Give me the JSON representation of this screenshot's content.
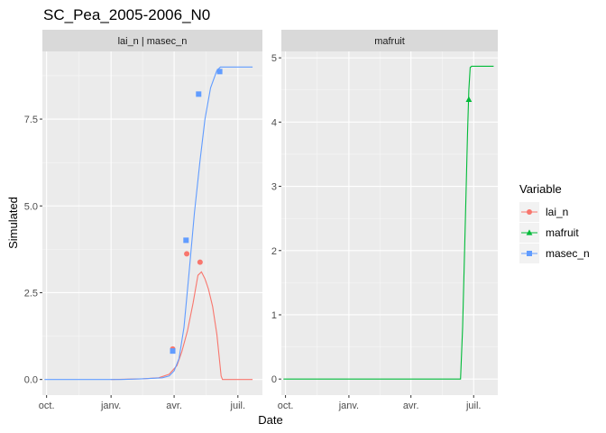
{
  "chart_data": {
    "type": "line",
    "title": "SC_Pea_2005-2006_N0",
    "xlabel": "Date",
    "ylabel": "Simulated",
    "legend": {
      "title": "Variable",
      "placement": "right",
      "entries": [
        {
          "name": "lai_n",
          "color": "#F8766D",
          "shape": "circle"
        },
        {
          "name": "mafruit",
          "color": "#00BA38",
          "shape": "triangle"
        },
        {
          "name": "masec_n",
          "color": "#619CFF",
          "shape": "square"
        }
      ]
    },
    "x_domain": [
      "2005-09-25",
      "2006-08-05"
    ],
    "x_ticks": [
      {
        "date": "2005-10-01",
        "label": "oct."
      },
      {
        "date": "2006-01-01",
        "label": "janv."
      },
      {
        "date": "2006-04-01",
        "label": "avr."
      },
      {
        "date": "2006-07-01",
        "label": "juil."
      }
    ],
    "grid": true,
    "panels": [
      {
        "strip": "lai_n | masec_n",
        "ylim": [
          -0.45,
          9.45
        ],
        "y_ticks": [
          {
            "value": 0,
            "label": "0.0"
          },
          {
            "value": 2.5,
            "label": "2.5"
          },
          {
            "value": 5,
            "label": "5.0"
          },
          {
            "value": 7.5,
            "label": "7.5"
          }
        ],
        "lines": [
          {
            "variable": "lai_n",
            "color": "#F8766D",
            "points": [
              [
                "2006-01-01",
                0
              ],
              [
                "2006-02-15",
                0.02
              ],
              [
                "2006-03-10",
                0.05
              ],
              [
                "2006-03-25",
                0.15
              ],
              [
                "2006-04-05",
                0.4
              ],
              [
                "2006-04-12",
                0.8
              ],
              [
                "2006-04-20",
                1.4
              ],
              [
                "2006-04-28",
                2.2
              ],
              [
                "2006-05-05",
                3.0
              ],
              [
                "2006-05-10",
                3.1
              ],
              [
                "2006-05-15",
                2.9
              ],
              [
                "2006-05-20",
                2.6
              ],
              [
                "2006-05-26",
                2.1
              ],
              [
                "2006-06-01",
                1.3
              ],
              [
                "2006-06-07",
                0.1
              ],
              [
                "2006-06-09",
                0
              ],
              [
                "2006-07-22",
                0
              ]
            ]
          },
          {
            "variable": "masec_n",
            "color": "#619CFF",
            "points": [
              [
                "2005-09-28",
                0
              ],
              [
                "2006-01-15",
                0
              ],
              [
                "2006-02-15",
                0.02
              ],
              [
                "2006-03-15",
                0.05
              ],
              [
                "2006-03-25",
                0.1
              ],
              [
                "2006-04-01",
                0.25
              ],
              [
                "2006-04-08",
                0.6
              ],
              [
                "2006-04-15",
                1.5
              ],
              [
                "2006-04-22",
                3.0
              ],
              [
                "2006-04-30",
                4.8
              ],
              [
                "2006-05-08",
                6.3
              ],
              [
                "2006-05-15",
                7.5
              ],
              [
                "2006-05-23",
                8.4
              ],
              [
                "2006-06-01",
                8.9
              ],
              [
                "2006-06-06",
                9.0
              ],
              [
                "2006-07-22",
                9.0
              ]
            ]
          }
        ],
        "points": [
          {
            "variable": "lai_n",
            "date": "2006-03-30",
            "value": 0.88
          },
          {
            "variable": "lai_n",
            "date": "2006-04-19",
            "value": 3.62
          },
          {
            "variable": "lai_n",
            "date": "2006-05-08",
            "value": 3.38
          },
          {
            "variable": "masec_n",
            "date": "2006-03-30",
            "value": 0.82
          },
          {
            "variable": "masec_n",
            "date": "2006-04-18",
            "value": 4.01
          },
          {
            "variable": "masec_n",
            "date": "2006-05-06",
            "value": 8.22
          },
          {
            "variable": "masec_n",
            "date": "2006-06-05",
            "value": 8.87
          }
        ]
      },
      {
        "strip": "mafruit",
        "ylim": [
          -0.25,
          5.1
        ],
        "y_ticks": [
          {
            "value": 0,
            "label": "0"
          },
          {
            "value": 1,
            "label": "1"
          },
          {
            "value": 2,
            "label": "2"
          },
          {
            "value": 3,
            "label": "3"
          },
          {
            "value": 4,
            "label": "4"
          },
          {
            "value": 5,
            "label": "5"
          }
        ],
        "lines": [
          {
            "variable": "mafruit",
            "color": "#00BA38",
            "points": [
              [
                "2005-09-28",
                0
              ],
              [
                "2006-06-12",
                0
              ],
              [
                "2006-06-15",
                0.8
              ],
              [
                "2006-06-19",
                2.5
              ],
              [
                "2006-06-22",
                3.8
              ],
              [
                "2006-06-24",
                4.5
              ],
              [
                "2006-06-26",
                4.85
              ],
              [
                "2006-06-28",
                4.87
              ],
              [
                "2006-07-30",
                4.87
              ]
            ]
          }
        ],
        "points": [
          {
            "variable": "mafruit",
            "date": "2006-06-24",
            "value": 4.35
          }
        ]
      }
    ]
  }
}
